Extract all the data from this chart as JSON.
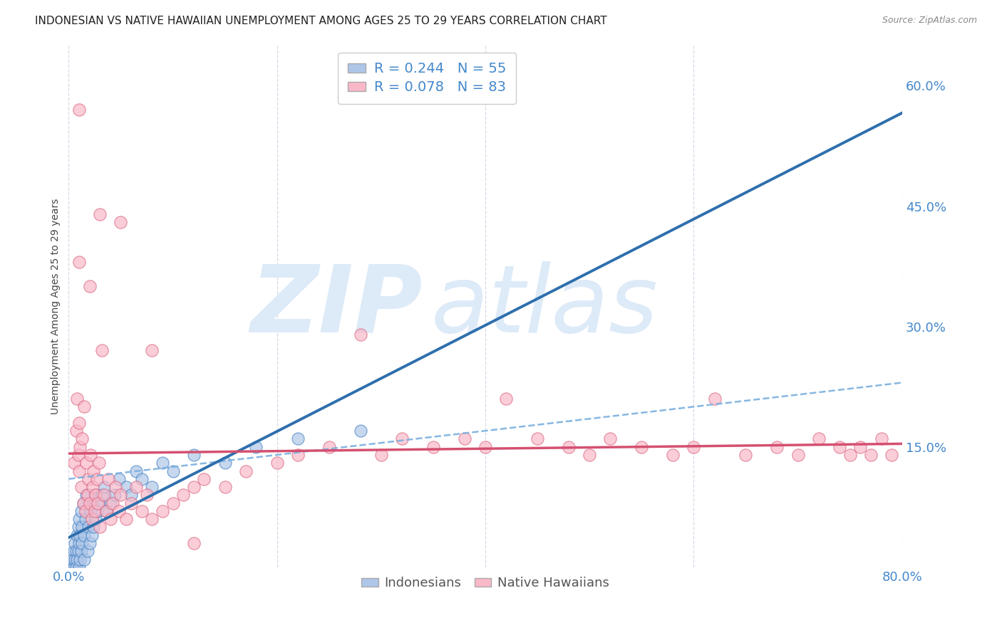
{
  "title": "INDONESIAN VS NATIVE HAWAIIAN UNEMPLOYMENT AMONG AGES 25 TO 29 YEARS CORRELATION CHART",
  "source": "Source: ZipAtlas.com",
  "ylabel": "Unemployment Among Ages 25 to 29 years",
  "xlim": [
    0.0,
    0.8
  ],
  "ylim": [
    0.0,
    0.65
  ],
  "xtick_positions": [
    0.0,
    0.2,
    0.4,
    0.6,
    0.8
  ],
  "xticklabels": [
    "0.0%",
    "",
    "",
    "",
    "80.0%"
  ],
  "ytick_right_positions": [
    0.15,
    0.3,
    0.45,
    0.6
  ],
  "ytick_right_labels": [
    "15.0%",
    "30.0%",
    "45.0%",
    "60.0%"
  ],
  "indonesian_fill": "#aec6e8",
  "indonesian_edge": "#3a7bbf",
  "hawaiian_fill": "#f9b8c8",
  "hawaiian_edge": "#d9607a",
  "trend_indo_color": "#2e6fad",
  "trend_haw_color": "#d45070",
  "dashed_line_color": "#7ab0df",
  "grid_color": "#d8d8e8",
  "bg_color": "#ffffff",
  "watermark_color": "#ddeaf8",
  "tick_color": "#4488cc",
  "title_color": "#222222",
  "source_color": "#888888",
  "legend_text_color": "#4488cc",
  "legend_R_indo": "R = 0.244",
  "legend_N_indo": "N = 55",
  "legend_R_haw": "R = 0.078",
  "legend_N_haw": "N = 83",
  "legend_label_indo": "Indonesians",
  "legend_label_haw": "Native Hawaiians",
  "N_indo": 55,
  "N_haw": 83,
  "indo_x": [
    0.003,
    0.004,
    0.005,
    0.005,
    0.006,
    0.006,
    0.007,
    0.007,
    0.008,
    0.008,
    0.009,
    0.009,
    0.01,
    0.01,
    0.01,
    0.011,
    0.011,
    0.012,
    0.012,
    0.013,
    0.013,
    0.014,
    0.015,
    0.015,
    0.016,
    0.017,
    0.018,
    0.019,
    0.02,
    0.021,
    0.022,
    0.023,
    0.024,
    0.025,
    0.026,
    0.028,
    0.03,
    0.032,
    0.034,
    0.036,
    0.04,
    0.044,
    0.048,
    0.055,
    0.06,
    0.065,
    0.07,
    0.08,
    0.09,
    0.1,
    0.12,
    0.15,
    0.18,
    0.22,
    0.28
  ],
  "indo_y": [
    0.0,
    0.01,
    0.0,
    0.02,
    0.01,
    0.03,
    0.0,
    0.02,
    0.01,
    0.04,
    0.02,
    0.05,
    0.0,
    0.03,
    0.06,
    0.01,
    0.04,
    0.02,
    0.07,
    0.03,
    0.05,
    0.08,
    0.01,
    0.04,
    0.06,
    0.09,
    0.02,
    0.05,
    0.03,
    0.07,
    0.04,
    0.08,
    0.05,
    0.09,
    0.06,
    0.07,
    0.08,
    0.09,
    0.1,
    0.07,
    0.08,
    0.09,
    0.11,
    0.1,
    0.09,
    0.12,
    0.11,
    0.1,
    0.13,
    0.12,
    0.14,
    0.13,
    0.15,
    0.16,
    0.17
  ],
  "haw_x": [
    0.005,
    0.007,
    0.008,
    0.009,
    0.01,
    0.01,
    0.011,
    0.012,
    0.013,
    0.014,
    0.015,
    0.016,
    0.017,
    0.018,
    0.019,
    0.02,
    0.021,
    0.022,
    0.023,
    0.024,
    0.025,
    0.026,
    0.027,
    0.028,
    0.029,
    0.03,
    0.032,
    0.034,
    0.036,
    0.038,
    0.04,
    0.042,
    0.045,
    0.048,
    0.05,
    0.055,
    0.06,
    0.065,
    0.07,
    0.075,
    0.08,
    0.09,
    0.1,
    0.11,
    0.12,
    0.13,
    0.15,
    0.17,
    0.2,
    0.22,
    0.25,
    0.28,
    0.3,
    0.32,
    0.35,
    0.38,
    0.4,
    0.42,
    0.45,
    0.48,
    0.5,
    0.52,
    0.55,
    0.58,
    0.6,
    0.62,
    0.65,
    0.68,
    0.7,
    0.72,
    0.74,
    0.75,
    0.76,
    0.77,
    0.78,
    0.79,
    0.01,
    0.01,
    0.02,
    0.03,
    0.05,
    0.08,
    0.12
  ],
  "haw_y": [
    0.13,
    0.17,
    0.21,
    0.14,
    0.12,
    0.18,
    0.15,
    0.1,
    0.16,
    0.08,
    0.2,
    0.07,
    0.13,
    0.09,
    0.11,
    0.08,
    0.14,
    0.06,
    0.1,
    0.12,
    0.07,
    0.09,
    0.11,
    0.08,
    0.13,
    0.05,
    0.27,
    0.09,
    0.07,
    0.11,
    0.06,
    0.08,
    0.1,
    0.07,
    0.09,
    0.06,
    0.08,
    0.1,
    0.07,
    0.09,
    0.06,
    0.07,
    0.08,
    0.09,
    0.1,
    0.11,
    0.1,
    0.12,
    0.13,
    0.14,
    0.15,
    0.29,
    0.14,
    0.16,
    0.15,
    0.16,
    0.15,
    0.21,
    0.16,
    0.15,
    0.14,
    0.16,
    0.15,
    0.14,
    0.15,
    0.21,
    0.14,
    0.15,
    0.14,
    0.16,
    0.15,
    0.14,
    0.15,
    0.14,
    0.16,
    0.14,
    0.57,
    0.38,
    0.35,
    0.44,
    0.43,
    0.27,
    0.03
  ]
}
